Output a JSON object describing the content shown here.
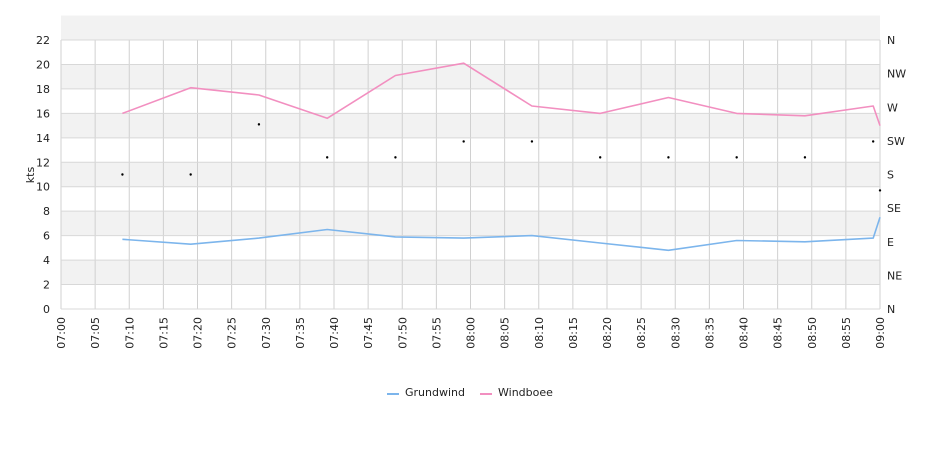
{
  "chart_data": {
    "type": "line",
    "ylabel": "kts",
    "ylim": [
      0,
      22
    ],
    "y_ticks": [
      "0",
      "2",
      "4",
      "6",
      "8",
      "10",
      "12",
      "14",
      "16",
      "18",
      "20",
      "22"
    ],
    "x_ticks": [
      "07:00",
      "07:05",
      "07:10",
      "07:15",
      "07:20",
      "07:25",
      "07:30",
      "07:35",
      "07:40",
      "07:45",
      "07:50",
      "07:55",
      "08:00",
      "08:05",
      "08:10",
      "08:15",
      "08:20",
      "08:25",
      "08:30",
      "08:35",
      "08:40",
      "08:45",
      "08:50",
      "08:55",
      "09:00"
    ],
    "x_range_minutes": [
      0,
      120
    ],
    "right_axis_labels": [
      "N",
      "NE",
      "E",
      "SE",
      "S",
      "SW",
      "W",
      "NW",
      "N"
    ],
    "grid": true,
    "series": [
      {
        "name": "Grundwind",
        "color": "#7cb5ec",
        "x": [
          "07:09",
          "07:19",
          "07:29",
          "07:39",
          "07:49",
          "07:59",
          "08:09",
          "08:19",
          "08:29",
          "08:39",
          "08:49",
          "08:59",
          "09:00"
        ],
        "values": [
          5.7,
          5.3,
          5.8,
          6.5,
          5.9,
          5.8,
          6.0,
          5.4,
          4.8,
          5.6,
          5.5,
          5.8,
          7.5
        ]
      },
      {
        "name": "Windboee",
        "color": "#f28fc0",
        "x": [
          "07:09",
          "07:19",
          "07:29",
          "07:39",
          "07:49",
          "07:59",
          "08:09",
          "08:19",
          "08:29",
          "08:39",
          "08:49",
          "08:59",
          "09:00"
        ],
        "values": [
          16.0,
          18.1,
          17.5,
          15.6,
          19.1,
          20.1,
          16.6,
          16.0,
          17.3,
          16.0,
          15.8,
          16.6,
          15.0
        ]
      }
    ],
    "direction_points": {
      "x": [
        "07:09",
        "07:19",
        "07:29",
        "07:39",
        "07:49",
        "07:59",
        "08:09",
        "08:19",
        "08:29",
        "08:39",
        "08:49",
        "08:59",
        "09:00"
      ],
      "values": [
        11.0,
        11.0,
        15.1,
        12.4,
        12.4,
        13.7,
        13.7,
        12.4,
        12.4,
        12.4,
        12.4,
        13.7,
        9.7
      ]
    },
    "legend_position": "bottom-center"
  }
}
